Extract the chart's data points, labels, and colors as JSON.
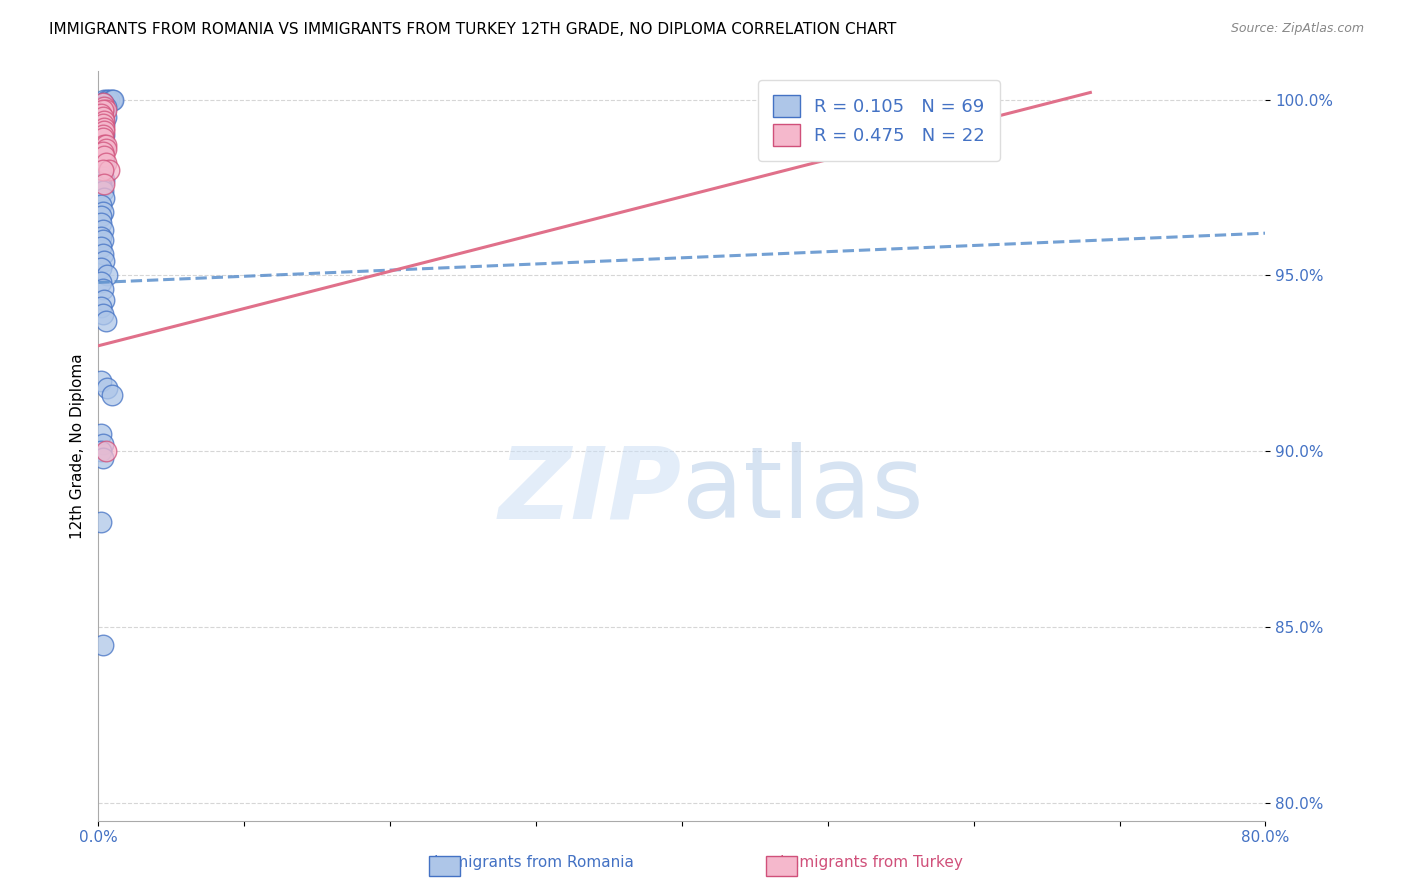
{
  "title": "IMMIGRANTS FROM ROMANIA VS IMMIGRANTS FROM TURKEY 12TH GRADE, NO DIPLOMA CORRELATION CHART",
  "source": "Source: ZipAtlas.com",
  "ylabel": "12th Grade, No Diploma",
  "xlim": [
    0.0,
    0.8
  ],
  "ylim": [
    0.795,
    1.008
  ],
  "xticks": [
    0.0,
    0.1,
    0.2,
    0.3,
    0.4,
    0.5,
    0.6,
    0.7,
    0.8
  ],
  "xticklabels": [
    "0.0%",
    "",
    "",
    "",
    "",
    "",
    "",
    "",
    "80.0%"
  ],
  "yticks": [
    0.8,
    0.85,
    0.9,
    0.95,
    1.0
  ],
  "yticklabels": [
    "80.0%",
    "85.0%",
    "90.0%",
    "95.0%",
    "100.0%"
  ],
  "romania_R": 0.105,
  "romania_N": 69,
  "turkey_R": 0.475,
  "turkey_N": 22,
  "romania_color": "#aec6e8",
  "turkey_color": "#f5b8cc",
  "romania_line_color": "#5b8fcc",
  "turkey_line_color": "#e0708a",
  "romania_edge_color": "#4472c4",
  "turkey_edge_color": "#d0507a",
  "romania_scatter_x": [
    0.004,
    0.006,
    0.007,
    0.009,
    0.01,
    0.003,
    0.005,
    0.002,
    0.003,
    0.004,
    0.002,
    0.003,
    0.004,
    0.005,
    0.003,
    0.002,
    0.003,
    0.004,
    0.002,
    0.003,
    0.002,
    0.003,
    0.004,
    0.002,
    0.003,
    0.002,
    0.003,
    0.004,
    0.003,
    0.003,
    0.002,
    0.003,
    0.004,
    0.002,
    0.003,
    0.002,
    0.003,
    0.004,
    0.002,
    0.002,
    0.003,
    0.004,
    0.002,
    0.003,
    0.002,
    0.002,
    0.003,
    0.002,
    0.003,
    0.002,
    0.003,
    0.004,
    0.002,
    0.006,
    0.002,
    0.003,
    0.004,
    0.002,
    0.003,
    0.005,
    0.002,
    0.006,
    0.009,
    0.002,
    0.003,
    0.002,
    0.003,
    0.002,
    0.003
  ],
  "romania_scatter_y": [
    1.0,
    1.0,
    1.0,
    1.0,
    1.0,
    0.999,
    0.998,
    0.998,
    0.997,
    0.997,
    0.996,
    0.996,
    0.995,
    0.995,
    0.994,
    0.994,
    0.993,
    0.993,
    0.992,
    0.992,
    0.991,
    0.99,
    0.99,
    0.989,
    0.989,
    0.988,
    0.987,
    0.986,
    0.985,
    0.985,
    0.984,
    0.983,
    0.982,
    0.981,
    0.98,
    0.979,
    0.978,
    0.977,
    0.976,
    0.975,
    0.974,
    0.972,
    0.97,
    0.968,
    0.967,
    0.965,
    0.963,
    0.961,
    0.96,
    0.958,
    0.956,
    0.954,
    0.952,
    0.95,
    0.948,
    0.946,
    0.943,
    0.941,
    0.939,
    0.937,
    0.92,
    0.918,
    0.916,
    0.905,
    0.902,
    0.9,
    0.898,
    0.88,
    0.845
  ],
  "turkey_scatter_x": [
    0.003,
    0.004,
    0.005,
    0.003,
    0.002,
    0.003,
    0.004,
    0.003,
    0.004,
    0.004,
    0.003,
    0.003,
    0.004,
    0.005,
    0.005,
    0.003,
    0.004,
    0.005,
    0.007,
    0.003,
    0.004,
    0.005
  ],
  "turkey_scatter_y": [
    0.999,
    0.998,
    0.997,
    0.997,
    0.996,
    0.995,
    0.994,
    0.993,
    0.992,
    0.991,
    0.99,
    0.989,
    0.987,
    0.987,
    0.986,
    0.985,
    0.984,
    0.982,
    0.98,
    0.98,
    0.976,
    0.9
  ],
  "romania_line_x0": 0.0,
  "romania_line_x1": 0.8,
  "romania_line_y0": 0.948,
  "romania_line_y1": 0.962,
  "turkey_line_x0": 0.0,
  "turkey_line_x1": 0.68,
  "turkey_line_y0": 0.93,
  "turkey_line_y1": 1.002,
  "watermark_zip": "ZIP",
  "watermark_atlas": "atlas",
  "watermark_color_zip": "#c8dff5",
  "watermark_color_atlas": "#b0c8e8"
}
